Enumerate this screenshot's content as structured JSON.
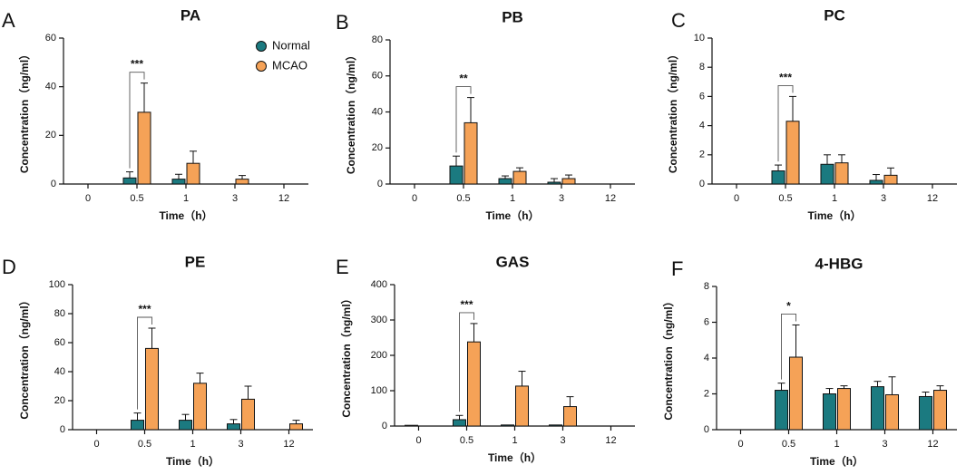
{
  "colors": {
    "normal": "#1b7a80",
    "mcao": "#f5a257",
    "axis": "#111111"
  },
  "legend": [
    {
      "name": "Normal",
      "color": "#1b7a80"
    },
    {
      "name": "MCAO",
      "color": "#f5a257"
    }
  ],
  "chart_data": [
    {
      "type": "bar",
      "letter": "A",
      "title": "PA",
      "xlabel": "Time（h）",
      "ylabel": "Concentration（ng/ml）",
      "categories": [
        "0",
        "0.5",
        "1",
        "3",
        "12"
      ],
      "ylim": [
        0,
        60
      ],
      "yticks": [
        0,
        20,
        40,
        60
      ],
      "series": [
        {
          "name": "Normal",
          "values": [
            null,
            2.5,
            2,
            null,
            null
          ],
          "errors": [
            null,
            2.5,
            2,
            null,
            null
          ]
        },
        {
          "name": "MCAO",
          "values": [
            null,
            29.5,
            8.5,
            2,
            null
          ],
          "errors": [
            null,
            12,
            5,
            1.5,
            null
          ]
        }
      ],
      "significance": {
        "category": "0.5",
        "label": "***"
      }
    },
    {
      "type": "bar",
      "letter": "B",
      "title": "PB",
      "xlabel": "Time（h）",
      "ylabel": "Concentration（ng/ml）",
      "categories": [
        "0",
        "0.5",
        "1",
        "3",
        "12"
      ],
      "ylim": [
        0,
        80
      ],
      "yticks": [
        0,
        20,
        40,
        60,
        80
      ],
      "series": [
        {
          "name": "Normal",
          "values": [
            null,
            10,
            3,
            1,
            null
          ],
          "errors": [
            null,
            5.5,
            1.5,
            2,
            null
          ]
        },
        {
          "name": "MCAO",
          "values": [
            null,
            34,
            7,
            3,
            null
          ],
          "errors": [
            null,
            14,
            2,
            2,
            null
          ]
        }
      ],
      "significance": {
        "category": "0.5",
        "label": "**"
      }
    },
    {
      "type": "bar",
      "letter": "C",
      "title": "PC",
      "xlabel": "Time（h）",
      "ylabel": "Concentration（ng/ml）",
      "categories": [
        "0",
        "0.5",
        "1",
        "3",
        "12"
      ],
      "ylim": [
        0,
        10
      ],
      "yticks": [
        0,
        2,
        4,
        6,
        8,
        10
      ],
      "series": [
        {
          "name": "Normal",
          "values": [
            null,
            0.9,
            1.35,
            0.25,
            null
          ],
          "errors": [
            null,
            0.4,
            0.65,
            0.4,
            null
          ]
        },
        {
          "name": "MCAO",
          "values": [
            null,
            4.3,
            1.45,
            0.6,
            null
          ],
          "errors": [
            null,
            1.7,
            0.55,
            0.5,
            null
          ]
        }
      ],
      "significance": {
        "category": "0.5",
        "label": "***"
      }
    },
    {
      "type": "bar",
      "letter": "D",
      "title": "PE",
      "xlabel": "Time（h）",
      "ylabel": "Concentration（ng/ml）",
      "categories": [
        "0",
        "0.5",
        "1",
        "3",
        "12"
      ],
      "ylim": [
        0,
        100
      ],
      "yticks": [
        0,
        20,
        40,
        60,
        80,
        100
      ],
      "series": [
        {
          "name": "Normal",
          "values": [
            null,
            6.5,
            6.5,
            4,
            null
          ],
          "errors": [
            null,
            5,
            4,
            3,
            null
          ]
        },
        {
          "name": "MCAO",
          "values": [
            null,
            56,
            32,
            21,
            4
          ],
          "errors": [
            null,
            14,
            7,
            9,
            2.5
          ]
        }
      ],
      "significance": {
        "category": "0.5",
        "label": "***"
      }
    },
    {
      "type": "bar",
      "letter": "E",
      "title": "GAS",
      "xlabel": "Time（h）",
      "ylabel": "Concentration（ng/ml）",
      "categories": [
        "0",
        "0.5",
        "1",
        "3",
        "12"
      ],
      "ylim": [
        0,
        400
      ],
      "yticks": [
        0,
        100,
        200,
        300,
        400
      ],
      "series": [
        {
          "name": "Normal",
          "values": [
            1,
            18,
            3,
            3,
            null
          ],
          "errors": [
            0,
            12,
            0,
            0,
            null
          ]
        },
        {
          "name": "MCAO",
          "values": [
            null,
            238,
            113,
            55,
            null
          ],
          "errors": [
            null,
            52,
            42,
            28,
            null
          ]
        }
      ],
      "significance": {
        "category": "0.5",
        "label": "***"
      }
    },
    {
      "type": "bar",
      "letter": "F",
      "title": "4-HBG",
      "xlabel": "Time（h）",
      "ylabel": "Concentration（ng/ml）",
      "categories": [
        "0",
        "0.5",
        "1",
        "3",
        "12"
      ],
      "ylim": [
        0,
        8
      ],
      "yticks": [
        0,
        2,
        4,
        6,
        8
      ],
      "series": [
        {
          "name": "Normal",
          "values": [
            null,
            2.2,
            2,
            2.4,
            1.85
          ],
          "errors": [
            null,
            0.4,
            0.3,
            0.3,
            0.25
          ]
        },
        {
          "name": "MCAO",
          "values": [
            null,
            4.05,
            2.3,
            1.95,
            2.2
          ],
          "errors": [
            null,
            1.8,
            0.15,
            1,
            0.25
          ]
        }
      ],
      "significance": {
        "category": "0.5",
        "label": "*"
      }
    }
  ]
}
